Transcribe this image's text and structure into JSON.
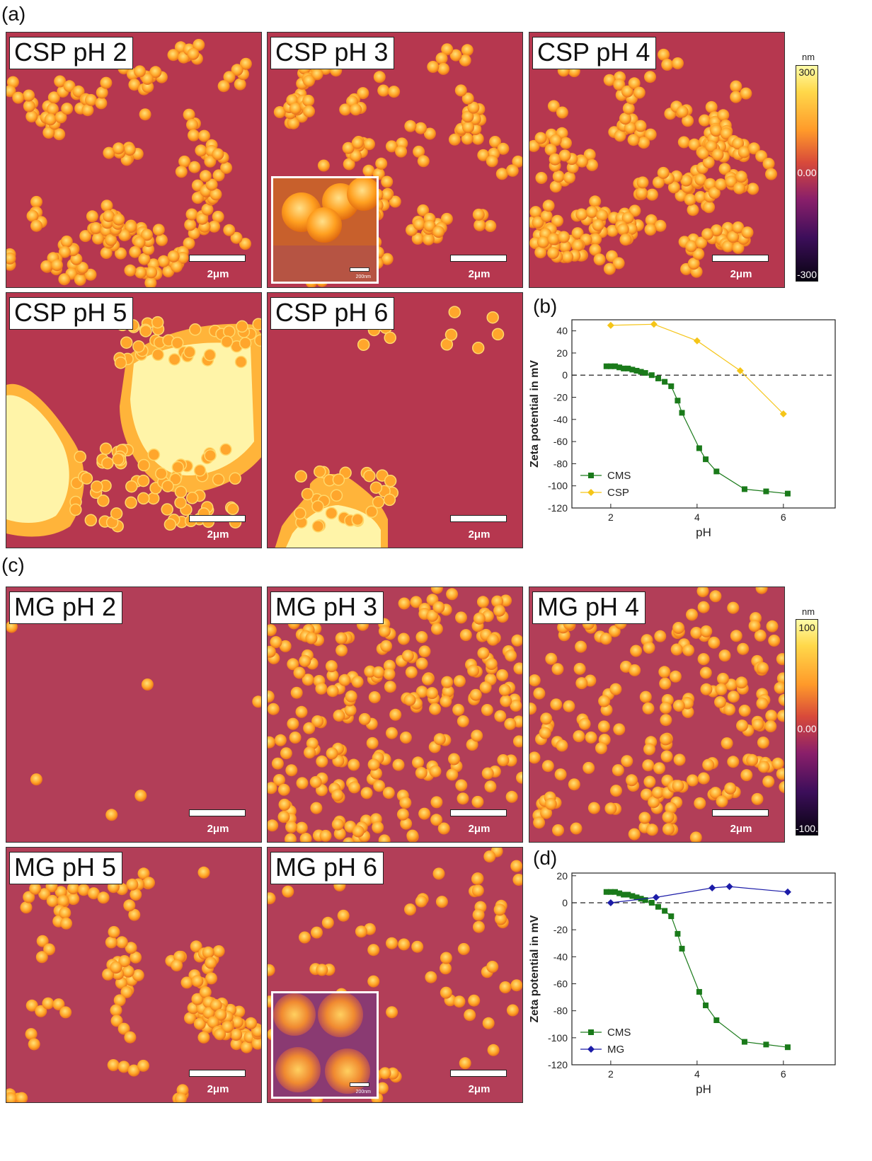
{
  "panel_labels": {
    "a": "(a)",
    "b": "(b)",
    "c": "(c)",
    "d": "(d)"
  },
  "csp_images": [
    {
      "label": "CSP pH 2",
      "scale": "2μm"
    },
    {
      "label": "CSP pH 3",
      "scale": "2μm",
      "inset_scale": "200nm"
    },
    {
      "label": "CSP pH 4",
      "scale": "2μm"
    },
    {
      "label": "CSP pH 5",
      "scale": "2μm"
    },
    {
      "label": "CSP pH 6",
      "scale": "2μm"
    }
  ],
  "mg_images": [
    {
      "label": "MG pH 2",
      "scale": "2μm"
    },
    {
      "label": "MG pH 3",
      "scale": "2μm"
    },
    {
      "label": "MG pH 4",
      "scale": "2μm"
    },
    {
      "label": "MG pH 5",
      "scale": "2μm"
    },
    {
      "label": "MG pH 6",
      "scale": "2μm",
      "inset_scale": "200nm"
    }
  ],
  "colorbar_top": {
    "unit": "nm",
    "max": "300",
    "mid": "0.00",
    "min": "-300"
  },
  "colorbar_bottom": {
    "unit": "nm",
    "max": "100",
    "mid": "0.00",
    "min": "-100.0"
  },
  "colors": {
    "cms": "#1a7a1a",
    "csp": "#f5c518",
    "mg": "#1c1ca8",
    "afm_bg": "#b6374f",
    "particle": "#ffb030"
  },
  "chart_data": [
    {
      "type": "line",
      "panel": "(b)",
      "xlabel": "pH",
      "ylabel": "Zeta potential in mV",
      "xlim": [
        1.1,
        7.2
      ],
      "ylim": [
        -120,
        50
      ],
      "xticks": [
        2,
        4,
        6
      ],
      "yticks": [
        40,
        20,
        0,
        -20,
        -40,
        -60,
        -80,
        -100,
        -120
      ],
      "reference_line": 0,
      "legend": "bottom-left",
      "series": [
        {
          "name": "CMS",
          "marker": "square",
          "color": "#1a7a1a",
          "x": [
            1.9,
            2.0,
            2.1,
            2.2,
            2.3,
            2.4,
            2.5,
            2.6,
            2.7,
            2.8,
            2.95,
            3.1,
            3.25,
            3.4,
            3.55,
            3.65,
            4.05,
            4.2,
            4.45,
            5.1,
            5.6,
            6.1
          ],
          "y": [
            8,
            8,
            8,
            7,
            6,
            6,
            5,
            4,
            3,
            2,
            0,
            -3,
            -6,
            -10,
            -23,
            -34,
            -66,
            -76,
            -87,
            -103,
            -105,
            -107
          ]
        },
        {
          "name": "CSP",
          "marker": "diamond",
          "color": "#f5c518",
          "x": [
            2,
            3,
            4,
            5,
            6
          ],
          "y": [
            45,
            46,
            31,
            4,
            -35
          ]
        }
      ]
    },
    {
      "type": "line",
      "panel": "(d)",
      "xlabel": "pH",
      "ylabel": "Zeta potential in mV",
      "xlim": [
        1.1,
        7.2
      ],
      "ylim": [
        -120,
        22
      ],
      "xticks": [
        2,
        4,
        6
      ],
      "yticks": [
        20,
        0,
        -20,
        -40,
        -60,
        -80,
        -100,
        -120
      ],
      "reference_line": 0,
      "legend": "bottom-left",
      "series": [
        {
          "name": "CMS",
          "marker": "square",
          "color": "#1a7a1a",
          "x": [
            1.9,
            2.0,
            2.1,
            2.2,
            2.3,
            2.4,
            2.5,
            2.6,
            2.7,
            2.8,
            2.95,
            3.1,
            3.25,
            3.4,
            3.55,
            3.65,
            4.05,
            4.2,
            4.45,
            5.1,
            5.6,
            6.1
          ],
          "y": [
            8,
            8,
            8,
            7,
            6,
            6,
            5,
            4,
            3,
            2,
            0,
            -3,
            -6,
            -10,
            -23,
            -34,
            -66,
            -76,
            -87,
            -103,
            -105,
            -107
          ]
        },
        {
          "name": "MG",
          "marker": "diamond",
          "color": "#1c1ca8",
          "x": [
            2.0,
            3.05,
            4.35,
            4.75,
            6.1
          ],
          "y": [
            0,
            4,
            11,
            12,
            8
          ]
        }
      ]
    }
  ]
}
